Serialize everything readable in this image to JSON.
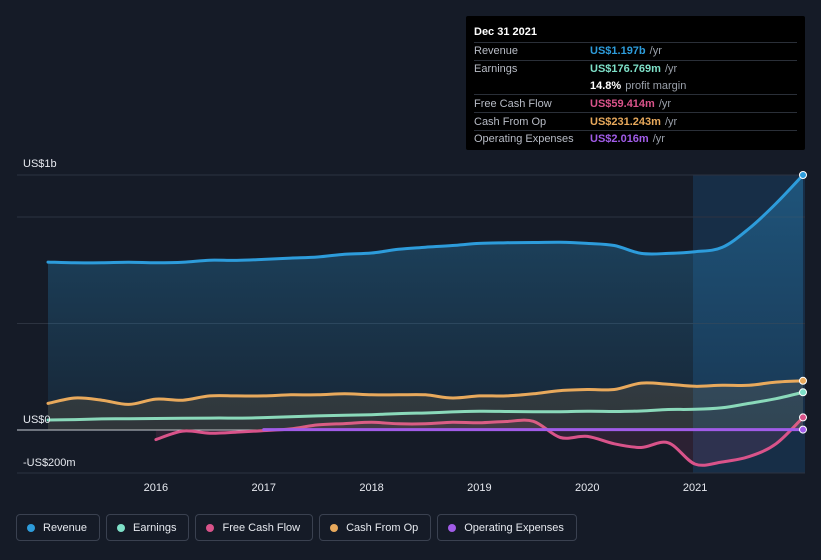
{
  "tooltip": {
    "date": "Dec 31 2021",
    "rows": [
      {
        "label": "Revenue",
        "value": "US$1.197b",
        "unit": "/yr",
        "color": "#2d9cdb"
      },
      {
        "label": "Earnings",
        "value": "US$176.769m",
        "unit": "/yr",
        "color": "#7ee0c8"
      },
      {
        "label": "",
        "value": "14.8%",
        "unit": "profit margin",
        "color": "#ffffff"
      },
      {
        "label": "Free Cash Flow",
        "value": "US$59.414m",
        "unit": "/yr",
        "color": "#d9538a"
      },
      {
        "label": "Cash From Op",
        "value": "US$231.243m",
        "unit": "/yr",
        "color": "#e8a95c"
      },
      {
        "label": "Operating Expenses",
        "value": "US$2.016m",
        "unit": "/yr",
        "color": "#a15ce8"
      }
    ]
  },
  "legend": [
    {
      "label": "Revenue",
      "color": "#2d9cdb"
    },
    {
      "label": "Earnings",
      "color": "#7ee0c8"
    },
    {
      "label": "Free Cash Flow",
      "color": "#d9538a"
    },
    {
      "label": "Cash From Op",
      "color": "#e8a95c"
    },
    {
      "label": "Operating Expenses",
      "color": "#a15ce8"
    }
  ],
  "chart_data": {
    "type": "line",
    "title": "",
    "xlabel": "",
    "ylabel": "",
    "ylim": [
      -200,
      1200
    ],
    "xlim": [
      2015.0,
      2022.0
    ],
    "y_tick_labels": [
      {
        "value": 1200,
        "label": "US$1b"
      },
      {
        "value": 0,
        "label": "US$0"
      },
      {
        "value": -200,
        "label": "-US$200m"
      }
    ],
    "x_ticks": [
      2016,
      2017,
      2018,
      2019,
      2020,
      2021
    ],
    "x_tick_labels": [
      "2016",
      "2017",
      "2018",
      "2019",
      "2020",
      "2021"
    ],
    "highlight_from": 2021.0,
    "series": [
      {
        "name": "Revenue",
        "color": "#2d9cdb",
        "fill": true,
        "x": [
          2015.0,
          2015.25,
          2015.5,
          2015.75,
          2016.0,
          2016.25,
          2016.5,
          2016.75,
          2017.0,
          2017.25,
          2017.5,
          2017.75,
          2018.0,
          2018.25,
          2018.5,
          2018.75,
          2019.0,
          2019.25,
          2019.5,
          2019.75,
          2020.0,
          2020.25,
          2020.5,
          2020.75,
          2021.0,
          2021.25,
          2021.5,
          2021.75,
          2022.0
        ],
        "values": [
          788,
          785,
          785,
          787,
          785,
          787,
          797,
          796,
          801,
          807,
          812,
          825,
          831,
          848,
          858,
          866,
          876,
          879,
          880,
          881,
          876,
          866,
          829,
          829,
          837,
          857,
          946,
          1063,
          1197
        ]
      },
      {
        "name": "Earnings",
        "color": "#7ee0c8",
        "fill": false,
        "x": [
          2015.0,
          2015.25,
          2015.5,
          2015.75,
          2016.0,
          2016.25,
          2016.5,
          2016.75,
          2017.0,
          2017.25,
          2017.5,
          2017.75,
          2018.0,
          2018.25,
          2018.5,
          2018.75,
          2019.0,
          2019.25,
          2019.5,
          2019.75,
          2020.0,
          2020.25,
          2020.5,
          2020.75,
          2021.0,
          2021.25,
          2021.5,
          2021.75,
          2022.0
        ],
        "values": [
          47,
          49,
          52,
          53,
          54,
          55,
          56,
          56,
          58,
          62,
          66,
          69,
          72,
          77,
          80,
          85,
          88,
          87,
          86,
          86,
          88,
          87,
          89,
          96,
          97,
          104,
          125,
          147,
          177
        ]
      },
      {
        "name": "Free Cash Flow",
        "color": "#d9538a",
        "fill": true,
        "x": [
          2016.0,
          2016.25,
          2016.5,
          2016.75,
          2017.0,
          2017.25,
          2017.5,
          2017.75,
          2018.0,
          2018.25,
          2018.5,
          2018.75,
          2019.0,
          2019.25,
          2019.5,
          2019.75,
          2020.0,
          2020.25,
          2020.5,
          2020.75,
          2021.0,
          2021.25,
          2021.5,
          2021.75,
          2022.0
        ],
        "values": [
          -45,
          -5,
          -15,
          -10,
          -3,
          5,
          24,
          30,
          36,
          29,
          29,
          36,
          34,
          40,
          41,
          -35,
          -30,
          -65,
          -82,
          -60,
          -160,
          -150,
          -125,
          -65,
          59
        ]
      },
      {
        "name": "Cash From Op",
        "color": "#e8a95c",
        "fill": true,
        "x": [
          2015.0,
          2015.25,
          2015.5,
          2015.75,
          2016.0,
          2016.25,
          2016.5,
          2016.75,
          2017.0,
          2017.25,
          2017.5,
          2017.75,
          2018.0,
          2018.25,
          2018.5,
          2018.75,
          2019.0,
          2019.25,
          2019.5,
          2019.75,
          2020.0,
          2020.25,
          2020.5,
          2020.75,
          2021.0,
          2021.25,
          2021.5,
          2021.75,
          2022.0
        ],
        "values": [
          125,
          150,
          140,
          120,
          145,
          140,
          160,
          160,
          160,
          165,
          165,
          170,
          165,
          165,
          165,
          150,
          160,
          160,
          170,
          185,
          190,
          190,
          220,
          215,
          205,
          210,
          210,
          225,
          231
        ]
      },
      {
        "name": "Operating Expenses",
        "color": "#a15ce8",
        "fill": false,
        "x": [
          2017.0,
          2017.5,
          2018.0,
          2018.5,
          2019.0,
          2019.5,
          2020.0,
          2020.5,
          2021.0,
          2021.5,
          2022.0
        ],
        "values": [
          2,
          2,
          2,
          2,
          2,
          2,
          2,
          2,
          2,
          2,
          2
        ]
      }
    ]
  }
}
